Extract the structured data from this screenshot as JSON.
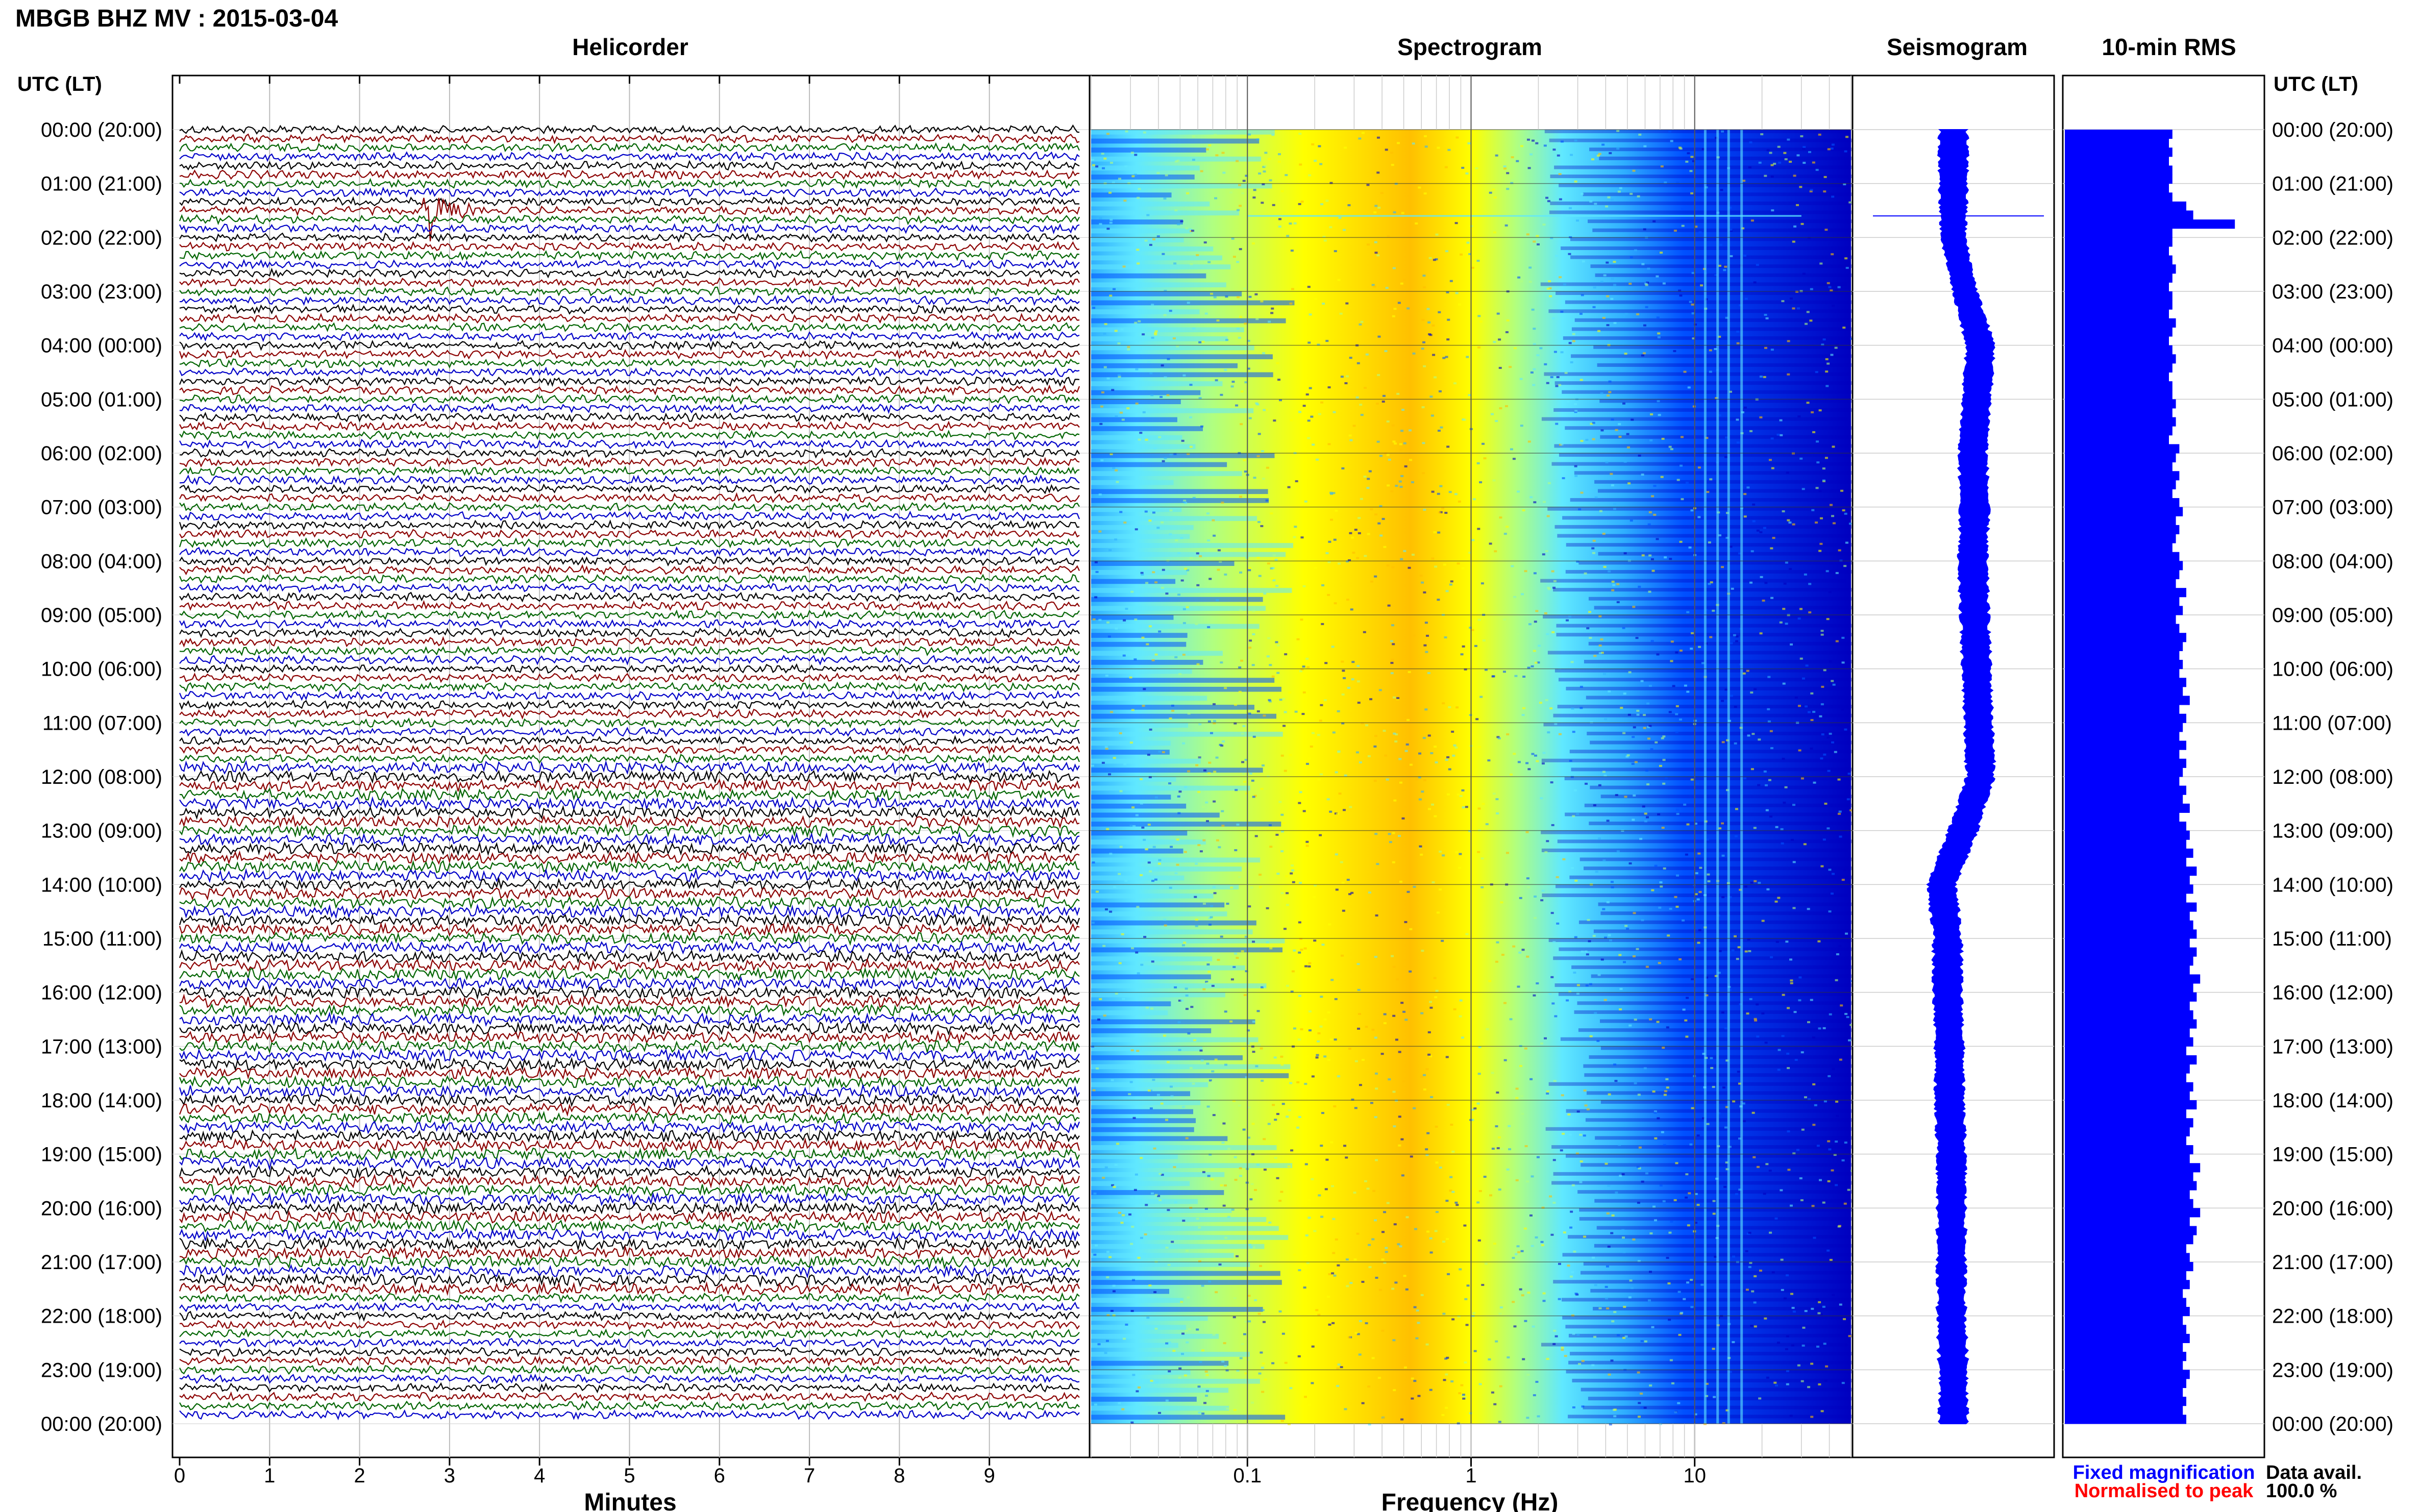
{
  "header": {
    "station_title": "MBGB BHZ MV : 2015-03-04",
    "utc_label_left": "UTC (LT)",
    "utc_label_right": "UTC (LT)"
  },
  "panels": {
    "helicorder_title": "Helicorder",
    "spectrogram_title": "Spectrogram",
    "seismogram_title": "Seismogram",
    "rms_title": "10-min RMS"
  },
  "axes": {
    "minutes_label": "Minutes",
    "frequency_label": "Frequency (Hz)",
    "minute_ticks": [
      "0",
      "1",
      "2",
      "3",
      "4",
      "5",
      "6",
      "7",
      "8",
      "9"
    ],
    "frequency_ticks": [
      "0.1",
      "1",
      "10"
    ]
  },
  "legend": {
    "fixed": "Fixed magnification",
    "normalised": "Normalised to peak",
    "fixed_color": "#0000ff",
    "normalised_color": "#ff0000"
  },
  "availability": {
    "label": "Data avail.",
    "value": "100.0 %"
  },
  "colors": {
    "trace_cycle": [
      "#000000",
      "#8b0000",
      "#006400",
      "#0000c8"
    ],
    "spectrogram_scale": [
      "#0000c0",
      "#0050ff",
      "#30b0ff",
      "#60e8ff",
      "#b0ff80",
      "#ffff00",
      "#ffc000"
    ],
    "seismogram": "#0000ff",
    "rms_bar": "#0000ff"
  },
  "chart_data": [
    {
      "type": "line",
      "panel": "helicorder",
      "x_label": "Minutes",
      "xlim": [
        0,
        10
      ],
      "rows": 144,
      "minutes_per_row": 10,
      "time_labels_utc_lt": [
        "00:00 (20:00)",
        "01:00 (21:00)",
        "02:00 (22:00)",
        "03:00 (23:00)",
        "04:00 (00:00)",
        "05:00 (01:00)",
        "06:00 (02:00)",
        "07:00 (03:00)",
        "08:00 (04:00)",
        "09:00 (05:00)",
        "10:00 (06:00)",
        "11:00 (07:00)",
        "12:00 (08:00)",
        "13:00 (09:00)",
        "14:00 (10:00)",
        "15:00 (11:00)",
        "16:00 (12:00)",
        "17:00 (13:00)",
        "18:00 (14:00)",
        "19:00 (15:00)",
        "20:00 (16:00)",
        "21:00 (17:00)",
        "22:00 (18:00)",
        "23:00 (19:00)",
        "00:00 (20:00)"
      ],
      "event": {
        "row": 9,
        "minute": 2.8
      }
    },
    {
      "type": "heatmap",
      "panel": "spectrogram",
      "x_label": "Frequency (Hz)",
      "x_scale": "log",
      "xlim": [
        0.02,
        50
      ],
      "x_ticks": [
        0.1,
        1,
        10
      ]
    },
    {
      "type": "area",
      "panel": "seismogram",
      "description_values": "envelope half-width per hour (relative)",
      "hours": [
        0,
        1,
        2,
        3,
        4,
        5,
        6,
        7,
        8,
        9,
        10,
        11,
        12,
        13,
        14,
        15,
        16,
        17,
        18,
        19,
        20,
        21,
        22,
        23,
        24
      ],
      "center_offset": [
        0,
        0,
        0,
        0.12,
        0.28,
        0.24,
        0.2,
        0.22,
        0.2,
        0.22,
        0.24,
        0.26,
        0.28,
        0.1,
        -0.12,
        -0.06,
        -0.06,
        -0.04,
        -0.04,
        -0.02,
        -0.02,
        -0.02,
        -0.02,
        0,
        0
      ],
      "half_width": [
        0.14,
        0.14,
        0.12,
        0.12,
        0.14,
        0.14,
        0.14,
        0.14,
        0.14,
        0.14,
        0.14,
        0.14,
        0.14,
        0.14,
        0.14,
        0.14,
        0.14,
        0.14,
        0.14,
        0.14,
        0.14,
        0.14,
        0.14,
        0.14,
        0.14
      ],
      "event_hour": 1.6
    },
    {
      "type": "bar",
      "panel": "10-min RMS",
      "values_relative": [
        0.62,
        0.6,
        0.62,
        0.6,
        0.62,
        0.62,
        0.6,
        0.62,
        0.7,
        0.74,
        0.98,
        0.62,
        0.62,
        0.6,
        0.62,
        0.64,
        0.62,
        0.6,
        0.62,
        0.62,
        0.6,
        0.64,
        0.62,
        0.6,
        0.62,
        0.64,
        0.62,
        0.6,
        0.62,
        0.62,
        0.64,
        0.62,
        0.64,
        0.62,
        0.6,
        0.66,
        0.64,
        0.62,
        0.66,
        0.64,
        0.62,
        0.66,
        0.68,
        0.64,
        0.66,
        0.64,
        0.62,
        0.66,
        0.68,
        0.66,
        0.64,
        0.7,
        0.66,
        0.68,
        0.64,
        0.66,
        0.7,
        0.68,
        0.66,
        0.68,
        0.66,
        0.7,
        0.68,
        0.72,
        0.66,
        0.7,
        0.68,
        0.66,
        0.7,
        0.66,
        0.7,
        0.68,
        0.66,
        0.7,
        0.68,
        0.72,
        0.66,
        0.7,
        0.72,
        0.7,
        0.74,
        0.7,
        0.76,
        0.72,
        0.74,
        0.7,
        0.76,
        0.72,
        0.74,
        0.76,
        0.72,
        0.76,
        0.74,
        0.72,
        0.78,
        0.74,
        0.76,
        0.72,
        0.74,
        0.76,
        0.72,
        0.74,
        0.7,
        0.76,
        0.72,
        0.7,
        0.74,
        0.72,
        0.76,
        0.7,
        0.74,
        0.72,
        0.7,
        0.74,
        0.72,
        0.78,
        0.74,
        0.76,
        0.72,
        0.74,
        0.78,
        0.72,
        0.76,
        0.74,
        0.7,
        0.72,
        0.74,
        0.7,
        0.72,
        0.68,
        0.7,
        0.72,
        0.68,
        0.7,
        0.72,
        0.68,
        0.7,
        0.68,
        0.72,
        0.7,
        0.68,
        0.7,
        0.68,
        0.7
      ]
    }
  ]
}
